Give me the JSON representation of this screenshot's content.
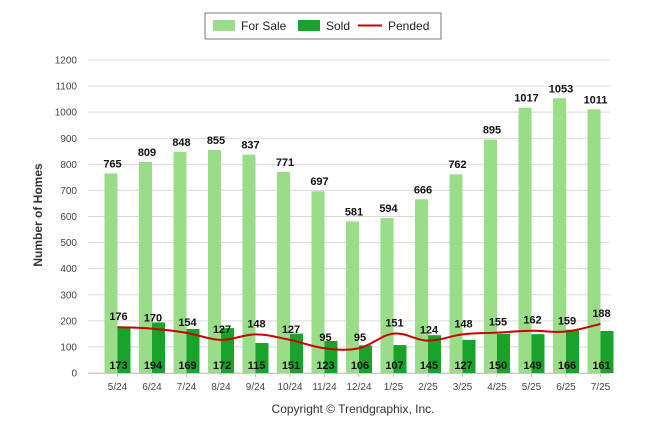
{
  "chart_data": {
    "type": "bar",
    "categories": [
      "5/24",
      "6/24",
      "7/24",
      "8/24",
      "9/24",
      "10/24",
      "11/24",
      "12/24",
      "1/25",
      "2/25",
      "3/25",
      "4/25",
      "5/25",
      "6/25",
      "7/25"
    ],
    "series": [
      {
        "name": "For Sale",
        "type": "bar",
        "color": "#99dd88",
        "values": [
          765,
          809,
          848,
          855,
          837,
          771,
          697,
          581,
          594,
          666,
          762,
          895,
          1017,
          1053,
          1011
        ]
      },
      {
        "name": "Sold",
        "type": "bar",
        "color": "#1aa32b",
        "values": [
          173,
          194,
          169,
          172,
          115,
          151,
          123,
          106,
          107,
          145,
          127,
          150,
          149,
          166,
          161
        ]
      },
      {
        "name": "Pended",
        "type": "line",
        "color": "#cc0000",
        "values": [
          176,
          170,
          154,
          127,
          148,
          127,
          95,
          95,
          151,
          124,
          148,
          155,
          162,
          159,
          188
        ]
      }
    ],
    "ylabel": "Number of Homes",
    "ylim": [
      0,
      1200
    ],
    "yticks": [
      0,
      100,
      200,
      300,
      400,
      500,
      600,
      700,
      800,
      900,
      1000,
      1100,
      1200
    ],
    "grid": true,
    "legend_position": "top-center"
  },
  "footer": {
    "copyright": "Copyright © Trendgraphix, Inc."
  }
}
